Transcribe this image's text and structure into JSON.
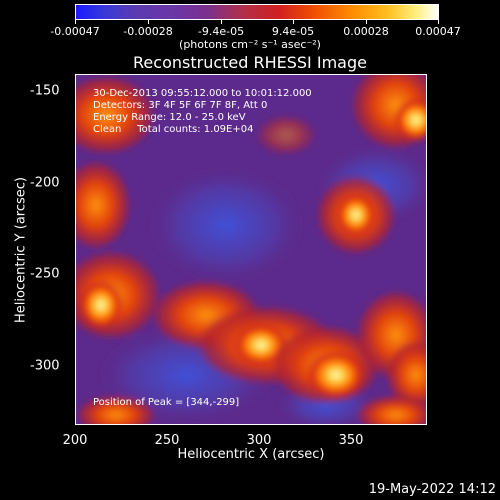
{
  "colorbar": {
    "ticks": [
      "-0.00047",
      "-0.00028",
      "-9.4e-05",
      "9.4e-05",
      "0.00028",
      "0.00047"
    ],
    "units": "(photons cm⁻² s⁻¹ asec⁻²)"
  },
  "title": "Reconstructed RHESSI Image",
  "info": {
    "time": "30-Dec-2013 09:55:12.000 to 10:01:12.000",
    "detectors": "Detectors: 3F 4F 5F 6F 7F 8F, Att 0",
    "energy": "Energy Range: 12.0 - 25.0 keV",
    "method": "Clean     Total counts: 1.09E+04"
  },
  "peak": "Position of Peak = [344,-299]",
  "axes": {
    "xlabel": "Heliocentric X (arcsec)",
    "ylabel": "Heliocentric Y (arcsec)",
    "xticks": [
      "200",
      "250",
      "300",
      "350"
    ],
    "yticks": [
      "-150",
      "-200",
      "-250",
      "-300"
    ]
  },
  "datestamp": "19-May-2022 14:12"
}
